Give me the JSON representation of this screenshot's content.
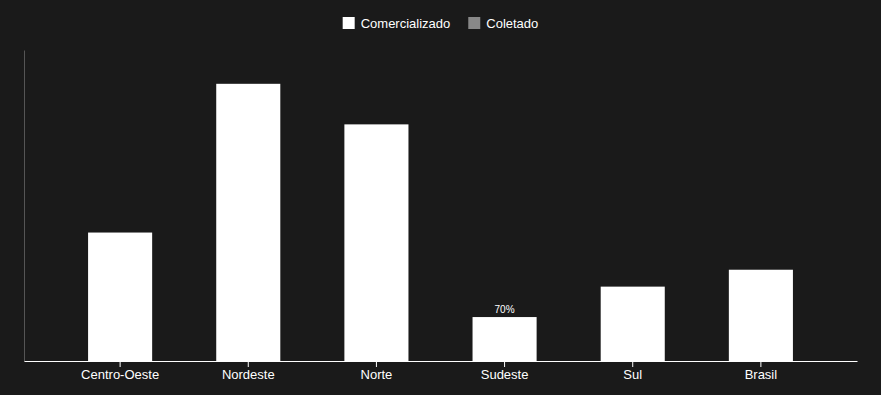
{
  "chart_data": {
    "type": "bar",
    "categories": [
      "Centro-Oeste",
      "Nordeste",
      "Norte",
      "Sudeste",
      "Sul",
      "Brasil"
    ],
    "series": [
      {
        "name": "Comercializado",
        "color": "#ffffff",
        "values": [
          38,
          82,
          70,
          13,
          22,
          27
        ]
      },
      {
        "name": "Coletado",
        "color": "#888888",
        "values": [
          null,
          null,
          null,
          null,
          null,
          null
        ]
      }
    ],
    "ylim": [
      0,
      92
    ],
    "tick_labels": "x",
    "grid": false,
    "legend": "top",
    "annotations": [
      {
        "text": "70%",
        "category": "Sudeste"
      }
    ]
  }
}
